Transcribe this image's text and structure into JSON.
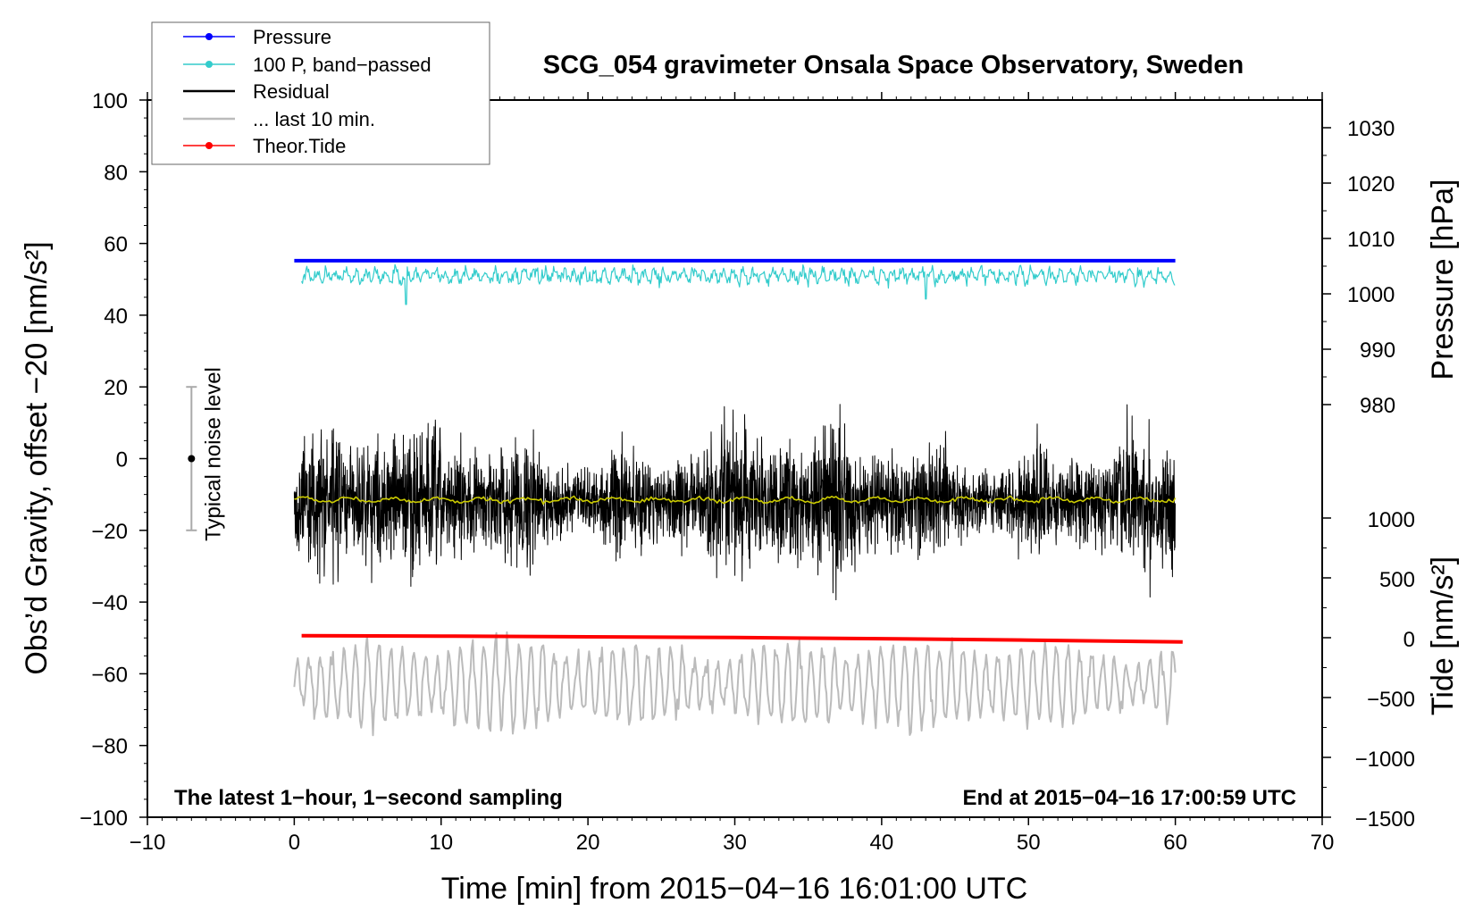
{
  "chart_data": {
    "type": "line",
    "title": "SCG_054 gravimeter Onsala Space Observatory, Sweden",
    "xlabel": "Time [min] from 2015−04−16 16:01:00 UTC",
    "ylabel": "Obs’d Gravity, offset −20 [nm/s²]",
    "xlim": [
      -10,
      70
    ],
    "ylim": [
      -100,
      100
    ],
    "x_ticks": [
      "−10",
      "0",
      "10",
      "20",
      "30",
      "40",
      "50",
      "60",
      "70"
    ],
    "y_ticks": [
      "100",
      "80",
      "60",
      "40",
      "20",
      "0",
      "−20",
      "−40",
      "−60",
      "−80",
      "−100"
    ],
    "right_pressure_axis": {
      "label": "Pressure [hPa]",
      "ticks": [
        "1030",
        "1020",
        "1010",
        "1000",
        "990",
        "980"
      ]
    },
    "right_tide_axis": {
      "label": "Tide [nm/s²]",
      "ticks": [
        "1000",
        "500",
        "0",
        "−500",
        "−1000",
        "−1500"
      ]
    },
    "annotation_left": "The latest 1−hour, 1−second sampling",
    "annotation_right": "End at 2015−04−16 17:00:59 UTC",
    "noise_label": "Typical noise level",
    "noise_bar": {
      "x": -7,
      "center": 0,
      "low": -20,
      "high": 20
    },
    "legend": [
      {
        "name": "Pressure",
        "color": "#0000ff",
        "marker": true
      },
      {
        "name": "100 P, band−passed",
        "color": "#33cccc",
        "marker": true
      },
      {
        "name": "Residual",
        "color": "#000000",
        "marker": false
      },
      {
        "name": "... last 10 min.",
        "color": "#bbbbbb",
        "marker": false
      },
      {
        "name": "Theor.Tide",
        "color": "#ff0000",
        "marker": true
      }
    ],
    "series": [
      {
        "name": "Pressure",
        "color": "#0000ff",
        "x": [
          0,
          60
        ],
        "y": [
          55.2,
          55.2
        ]
      },
      {
        "name": "100 P, band−passed",
        "color": "#33cccc",
        "x_range": [
          0.5,
          60
        ],
        "mean": 51,
        "amplitude": 2
      },
      {
        "name": "Residual",
        "color": "#000000",
        "x_range": [
          0,
          60
        ],
        "mean": -12,
        "amplitude": 11
      },
      {
        "name": "Residual smoothed",
        "color": "#cccc00",
        "x_range": [
          0,
          60
        ],
        "mean": -11.5,
        "amplitude": 0.6
      },
      {
        "name": "... last 10 min.",
        "color": "#bbbbbb",
        "x_range": [
          0,
          60
        ],
        "mean": -63,
        "amplitude": 9
      },
      {
        "name": "Theor.Tide",
        "color": "#ff0000",
        "x": [
          0.5,
          10,
          20,
          30,
          40,
          50,
          60.5
        ],
        "y": [
          -49.4,
          -49.5,
          -49.7,
          -49.9,
          -50.2,
          -50.6,
          -51.1
        ]
      }
    ]
  }
}
